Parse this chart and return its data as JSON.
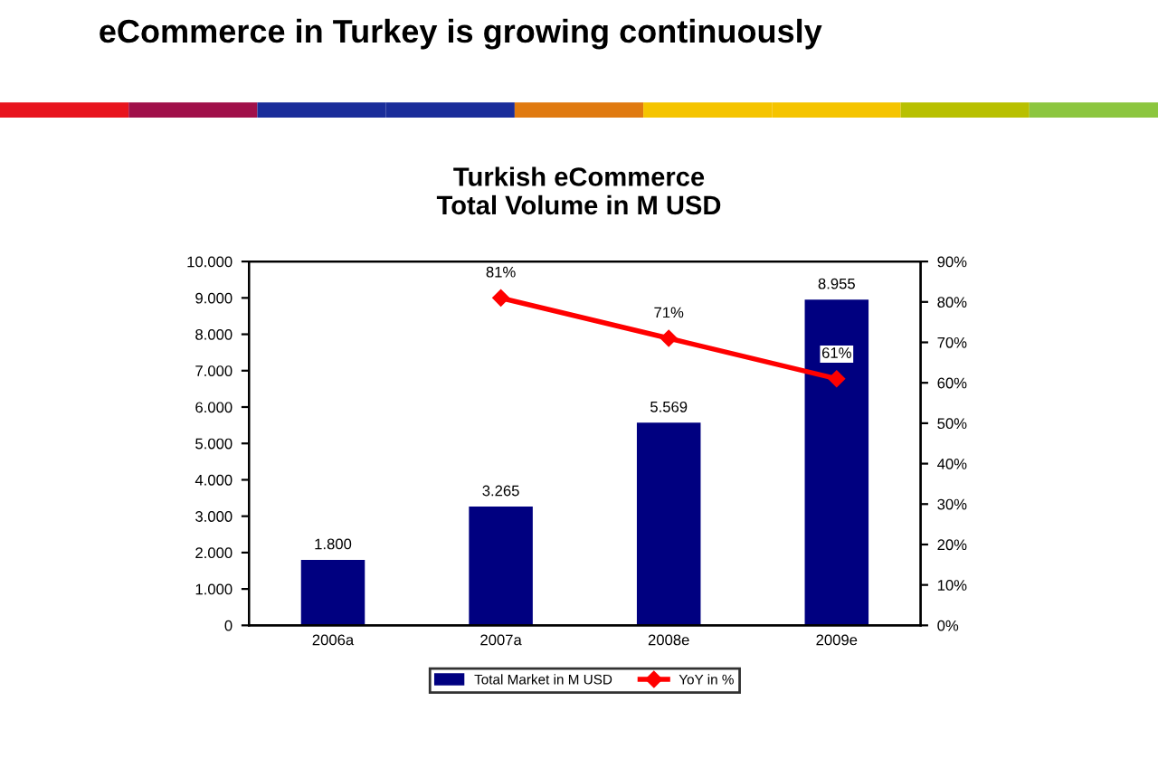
{
  "chart_data": {
    "type": "bar",
    "title": "eCommerce in Turkey is growing continuously",
    "subtitle": "Turkish eCommerce\nTotal Volume in M USD",
    "categories": [
      "2006a",
      "2007a",
      "2008e",
      "2009e"
    ],
    "series": [
      {
        "name": "Total Market in M USD",
        "color": "#000080",
        "values": [
          1800,
          3265,
          5569,
          8955
        ],
        "value_labels": [
          "1.800",
          "3.265",
          "5.569",
          "8.955"
        ]
      },
      {
        "name": "YoY in %",
        "type": "line",
        "axis": "y2",
        "color": "#ff0000",
        "marker": "diamond",
        "values": [
          null,
          81,
          71,
          61
        ],
        "value_labels": [
          null,
          "81%",
          "71%",
          "61%"
        ]
      }
    ],
    "ylim": [
      0,
      10000
    ],
    "yticks": [
      0,
      {
        "value": 1000,
        "label": "1.000"
      },
      {
        "value": 2000,
        "label": "2.000"
      },
      {
        "value": 3000,
        "label": "3.000"
      },
      {
        "value": 4000,
        "label": "4.000"
      },
      {
        "value": 5000,
        "label": "5.000"
      },
      {
        "value": 6000,
        "label": "6.000"
      },
      {
        "value": 7000,
        "label": "7.000"
      },
      {
        "value": 8000,
        "label": "8.000"
      },
      {
        "value": 9000,
        "label": "9.000"
      },
      {
        "value": 10000,
        "label": "10.000"
      }
    ],
    "y2lim": [
      0,
      90
    ],
    "y2ticks": [
      {
        "value": 0,
        "label": "0%"
      },
      {
        "value": 10,
        "label": "10%"
      },
      {
        "value": 20,
        "label": "20%"
      },
      {
        "value": 30,
        "label": "30%"
      },
      {
        "value": 40,
        "label": "40%"
      },
      {
        "value": 50,
        "label": "50%"
      },
      {
        "value": 60,
        "label": "60%"
      },
      {
        "value": 70,
        "label": "70%"
      },
      {
        "value": 80,
        "label": "80%"
      },
      {
        "value": 90,
        "label": "90%"
      }
    ],
    "grid": false,
    "legend": "bottom"
  }
}
